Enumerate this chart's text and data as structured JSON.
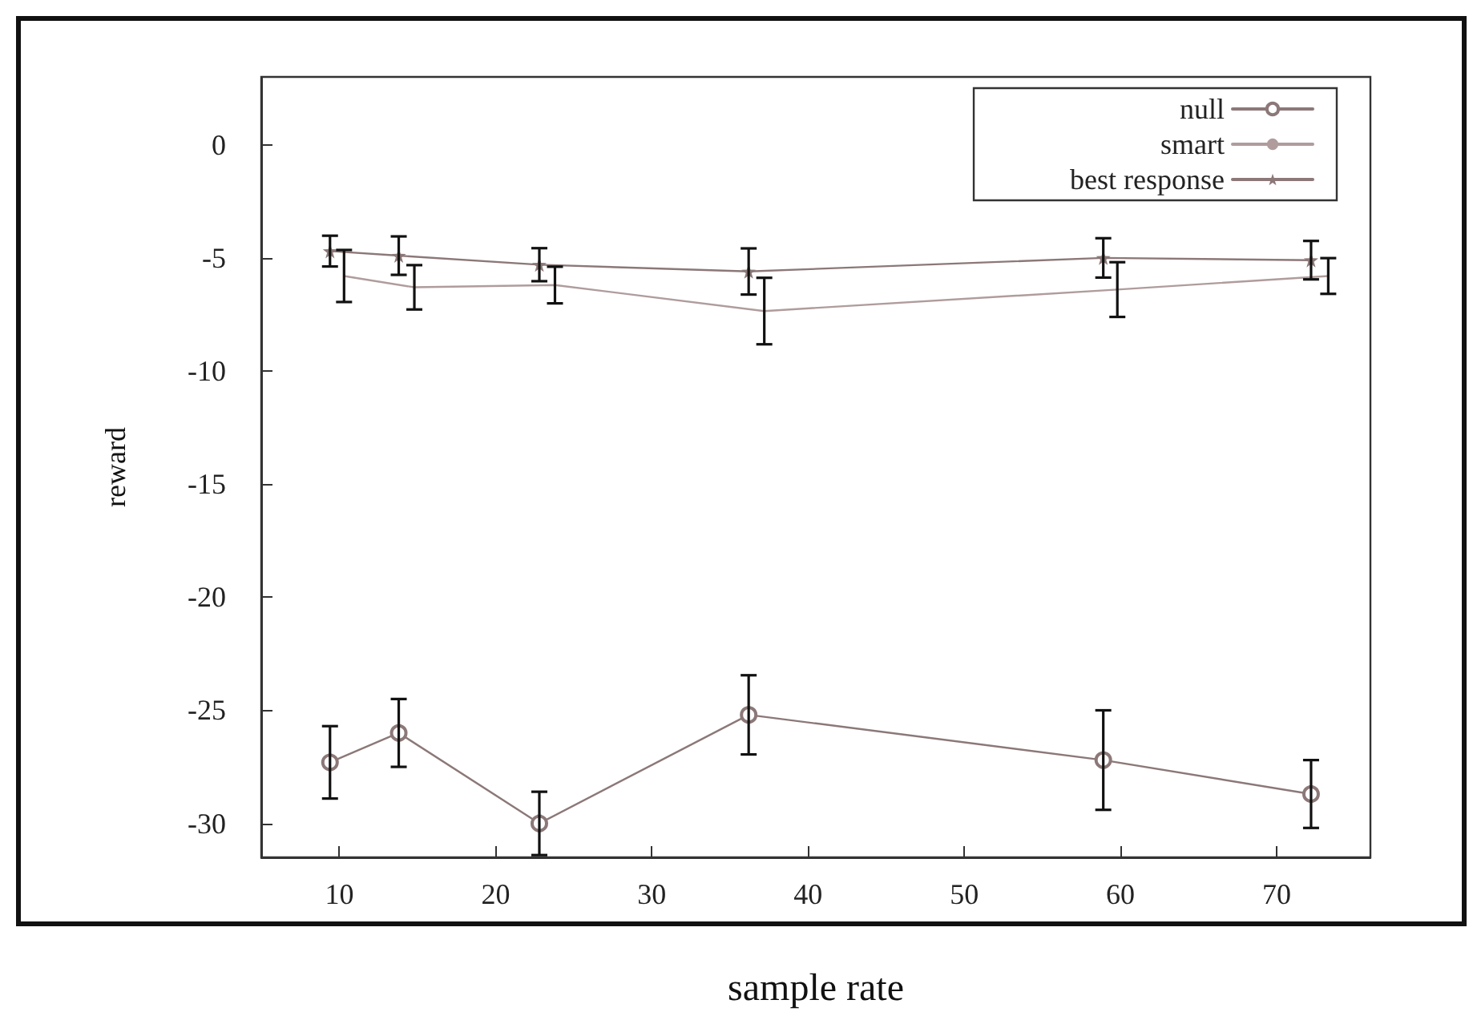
{
  "chart_data": {
    "type": "line",
    "xlabel": "sample rate",
    "ylabel": "reward",
    "xlim": [
      5,
      76
    ],
    "xticks": [
      10,
      20,
      30,
      40,
      50,
      60,
      70
    ],
    "ylim": [
      -31.5,
      3
    ],
    "yticks": [
      0,
      -5,
      -10,
      -15,
      -20,
      -25,
      -30
    ],
    "grid": false,
    "legend": "top right",
    "line_style": "solid",
    "series": [
      {
        "name": "null",
        "color": "#8c7878",
        "marker": "circle",
        "x": [
          9.4,
          13.8,
          22.8,
          36.2,
          58.9,
          72.2
        ],
        "values": [
          -27.3,
          -26.0,
          -30.0,
          -25.2,
          -27.2,
          -28.7
        ],
        "errors": [
          1.6,
          1.5,
          1.4,
          1.75,
          2.2,
          1.5
        ]
      },
      {
        "name": "smart",
        "color": "#b09c9c",
        "marker": "none",
        "x": [
          10.3,
          14.8,
          23.8,
          37.2,
          59.8,
          73.3
        ],
        "values": [
          -5.8,
          -6.3,
          -6.2,
          -7.35,
          -6.4,
          -5.8
        ],
        "errors": [
          1.15,
          0.98,
          0.81,
          1.47,
          1.21,
          0.79
        ]
      },
      {
        "name": "best response",
        "color": "#8c7878",
        "marker": "star",
        "x": [
          9.4,
          13.8,
          22.8,
          36.2,
          58.9,
          72.2
        ],
        "values": [
          -4.7,
          -4.9,
          -5.3,
          -5.6,
          -5.0,
          -5.1
        ],
        "errors": [
          0.68,
          0.85,
          0.73,
          1.02,
          0.87,
          0.85
        ]
      }
    ]
  }
}
